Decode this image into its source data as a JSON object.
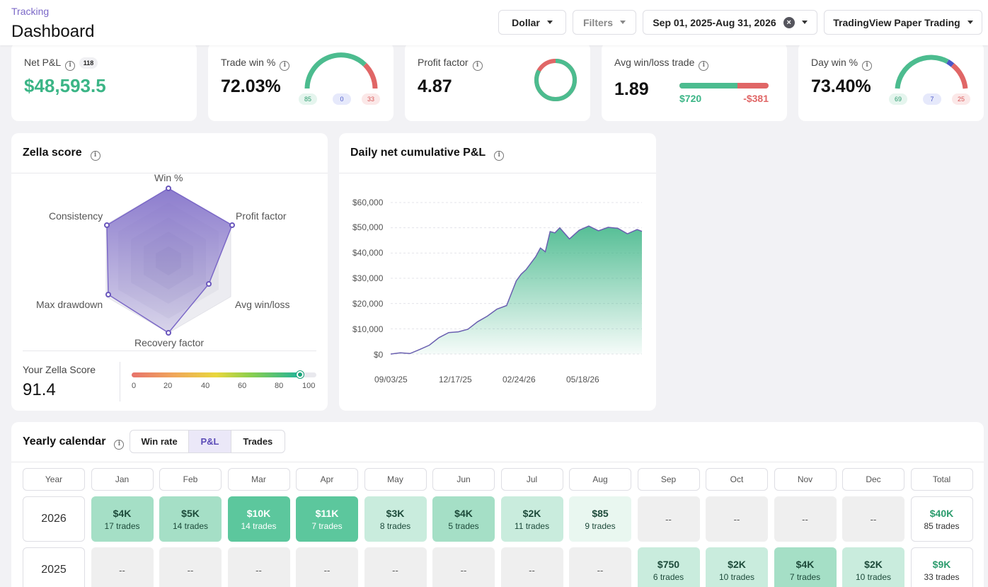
{
  "header": {
    "breadcrumb": "Tracking",
    "title": "Dashboard",
    "currency": "Dollar",
    "filters": "Filters",
    "date_range": "Sep 01, 2025-Aug 31, 2026",
    "account": "TradingView Paper Trading"
  },
  "stats": {
    "net_pnl": {
      "label": "Net P&L",
      "badge": "118",
      "value": "$48,593.5"
    },
    "trade_win": {
      "label": "Trade win %",
      "value": "72.03%",
      "wins": "85",
      "breakeven": "0",
      "losses": "33"
    },
    "profit_factor": {
      "label": "Profit factor",
      "value": "4.87",
      "ring_fraction": 0.83
    },
    "avg_win_loss": {
      "label": "Avg win/loss trade",
      "value": "1.89",
      "avg_win": "$720",
      "avg_loss": "-$381",
      "win_fraction": 0.654
    },
    "day_win": {
      "label": "Day win %",
      "value": "73.40%",
      "wins": "69",
      "breakeven": "7",
      "losses": "25"
    }
  },
  "zella": {
    "title": "Zella score",
    "axes": [
      "Win %",
      "Profit factor",
      "Avg win/loss",
      "Recovery factor",
      "Max drawdown",
      "Consistency"
    ],
    "your_score_label": "Your Zella Score",
    "score": "91.4",
    "scale_ticks": [
      "0",
      "20",
      "40",
      "60",
      "80",
      "100"
    ]
  },
  "cumulative": {
    "title": "Daily net cumulative P&L",
    "y_ticks": [
      "$60,000",
      "$50,000",
      "$40,000",
      "$30,000",
      "$20,000",
      "$10,000",
      "$0"
    ],
    "x_ticks": [
      "09/03/25",
      "12/17/25",
      "02/24/26",
      "05/18/26"
    ]
  },
  "chart_data": {
    "type": "area",
    "title": "Daily net cumulative P&L",
    "ylim": [
      0,
      60000
    ],
    "x": [
      "09/01/25",
      "09/15/25",
      "09/29/25",
      "10/13/25",
      "10/27/25",
      "11/10/25",
      "11/24/25",
      "12/08/25",
      "12/22/25",
      "01/05/26",
      "01/19/26",
      "02/02/26",
      "02/16/26",
      "03/02/26",
      "03/09/26",
      "03/16/26",
      "03/30/26",
      "04/06/26",
      "04/13/26",
      "04/20/26",
      "04/27/26",
      "05/04/26",
      "05/18/26",
      "06/01/26",
      "06/15/26",
      "06/29/26",
      "07/13/26",
      "07/27/26",
      "08/10/26",
      "08/24/26",
      "08/31/26"
    ],
    "values": [
      0,
      500,
      200,
      1800,
      3500,
      6500,
      8500,
      8800,
      9800,
      12800,
      15000,
      17800,
      19200,
      29000,
      31600,
      33400,
      38500,
      42000,
      40500,
      48500,
      48000,
      50000,
      45600,
      49000,
      50700,
      48800,
      50200,
      49800,
      47600,
      49300,
      48600
    ]
  },
  "calendar": {
    "title": "Yearly calendar",
    "toggle": [
      "Win rate",
      "P&L",
      "Trades"
    ],
    "active_toggle": 1,
    "headers": [
      "Year",
      "Jan",
      "Feb",
      "Mar",
      "Apr",
      "May",
      "Jun",
      "Jul",
      "Aug",
      "Sep",
      "Oct",
      "Nov",
      "Dec",
      "Total"
    ],
    "rows": [
      {
        "year": "2026",
        "cells": [
          {
            "value": "$4K",
            "trades": "17 trades",
            "level": 2
          },
          {
            "value": "$5K",
            "trades": "14 trades",
            "level": 2
          },
          {
            "value": "$10K",
            "trades": "14 trades",
            "level": 4
          },
          {
            "value": "$11K",
            "trades": "7 trades",
            "level": 4
          },
          {
            "value": "$3K",
            "trades": "8 trades",
            "level": 1
          },
          {
            "value": "$4K",
            "trades": "5 trades",
            "level": 2
          },
          {
            "value": "$2K",
            "trades": "11 trades",
            "level": 1
          },
          {
            "value": "$85",
            "trades": "9 trades",
            "level": 0.5
          },
          {
            "value": "--",
            "trades": "",
            "level": 0
          },
          {
            "value": "--",
            "trades": "",
            "level": 0
          },
          {
            "value": "--",
            "trades": "",
            "level": 0
          },
          {
            "value": "--",
            "trades": "",
            "level": 0
          }
        ],
        "total": {
          "value": "$40K",
          "trades": "85 trades"
        }
      },
      {
        "year": "2025",
        "cells": [
          {
            "value": "--",
            "trades": "",
            "level": 0
          },
          {
            "value": "--",
            "trades": "",
            "level": 0
          },
          {
            "value": "--",
            "trades": "",
            "level": 0
          },
          {
            "value": "--",
            "trades": "",
            "level": 0
          },
          {
            "value": "--",
            "trades": "",
            "level": 0
          },
          {
            "value": "--",
            "trades": "",
            "level": 0
          },
          {
            "value": "--",
            "trades": "",
            "level": 0
          },
          {
            "value": "--",
            "trades": "",
            "level": 0
          },
          {
            "value": "$750",
            "trades": "6 trades",
            "level": 1
          },
          {
            "value": "$2K",
            "trades": "10 trades",
            "level": 1
          },
          {
            "value": "$4K",
            "trades": "7 trades",
            "level": 2
          },
          {
            "value": "$2K",
            "trades": "10 trades",
            "level": 1
          }
        ],
        "total": {
          "value": "$9K",
          "trades": "33 trades"
        }
      }
    ]
  },
  "colors": {
    "accent": "#7b68c7",
    "positive": "#38b383",
    "negative": "#e06666",
    "neutral": "#4957c8"
  }
}
